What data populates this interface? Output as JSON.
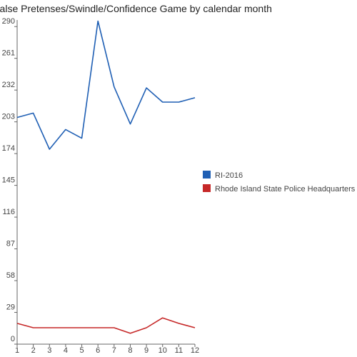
{
  "chart_data": {
    "type": "line",
    "title": "False Pretenses/Swindle/Confidence Game by calendar month",
    "xlabel": "",
    "ylabel": "",
    "x": [
      1,
      2,
      3,
      4,
      5,
      6,
      7,
      8,
      9,
      10,
      11,
      12
    ],
    "ylim": [
      0,
      296
    ],
    "yticks": [
      0,
      29,
      58,
      87,
      116,
      145,
      174,
      203,
      232,
      261,
      290
    ],
    "grid": false,
    "legend_position": "right",
    "series": [
      {
        "name": "RI-2016",
        "color": "#1f5fb4",
        "values": [
          207,
          211,
          178,
          196,
          188,
          295,
          235,
          201,
          234,
          221,
          221,
          225
        ]
      },
      {
        "name": "Rhode Island State Police Headquarters",
        "color": "#c62828",
        "values": [
          19,
          15,
          15,
          15,
          15,
          15,
          15,
          10,
          15,
          24,
          19,
          15
        ]
      }
    ]
  }
}
